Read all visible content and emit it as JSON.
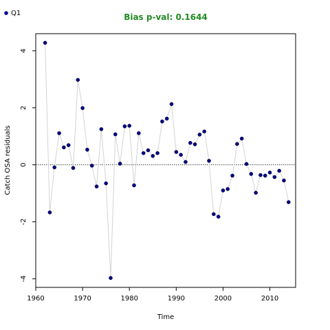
{
  "chart_data": {
    "type": "scatter",
    "title": "Bias p-val: 0.1644",
    "title_color": "#228b22",
    "xlabel": "Time",
    "ylabel": "Catch OSA residuals",
    "xlim": [
      1960,
      2015.5
    ],
    "ylim": [
      -4.3,
      4.6
    ],
    "xticks": [
      1960,
      1970,
      1980,
      1990,
      2000,
      2010
    ],
    "yticks": [
      -4,
      -2,
      0,
      2,
      4
    ],
    "reference_line": 0,
    "grid": false,
    "legend_position": "top-left",
    "series": [
      {
        "name": "Q1",
        "color": "#00008b",
        "line_color": "#d3d3d3",
        "x": [
          1962,
          1963,
          1964,
          1965,
          1966,
          1967,
          1968,
          1969,
          1970,
          1971,
          1972,
          1973,
          1974,
          1975,
          1976,
          1977,
          1978,
          1979,
          1980,
          1981,
          1982,
          1983,
          1984,
          1985,
          1986,
          1987,
          1988,
          1989,
          1990,
          1991,
          1992,
          1993,
          1994,
          1995,
          1996,
          1997,
          1998,
          1999,
          2000,
          2001,
          2002,
          2003,
          2004,
          2005,
          2006,
          2007,
          2008,
          2009,
          2010,
          2011,
          2012,
          2013,
          2014
        ],
        "y": [
          4.28,
          -1.67,
          -0.09,
          1.11,
          0.61,
          0.69,
          -0.11,
          2.98,
          1.99,
          0.53,
          -0.03,
          -0.76,
          1.25,
          -0.65,
          -3.97,
          1.07,
          0.04,
          1.35,
          1.37,
          -0.72,
          1.11,
          0.41,
          0.51,
          0.31,
          0.41,
          1.52,
          1.62,
          2.13,
          0.45,
          0.35,
          0.1,
          0.77,
          0.72,
          1.06,
          1.17,
          0.14,
          -1.73,
          -1.82,
          -0.9,
          -0.85,
          -0.38,
          0.73,
          0.92,
          0.03,
          -0.32,
          -0.98,
          -0.36,
          -0.38,
          -0.27,
          -0.43,
          -0.21,
          -0.55,
          -1.31
        ]
      }
    ]
  }
}
